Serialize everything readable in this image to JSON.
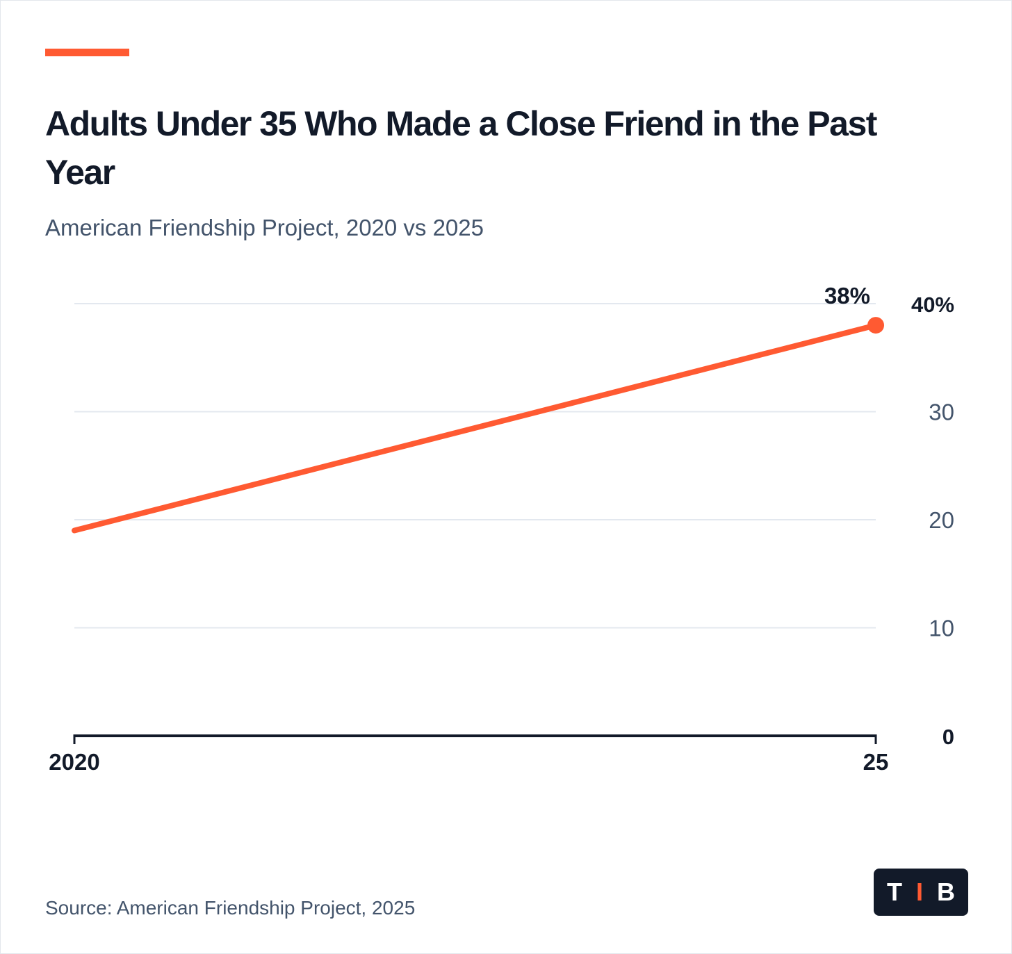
{
  "header": {
    "title": "Adults Under 35 Who Made a Close Friend in the Past Year",
    "subtitle": "American Friendship Project, 2020 vs 2025"
  },
  "footer": {
    "source": "Source: American Friendship Project, 2025"
  },
  "logo": {
    "letters": [
      "T",
      "I",
      "B"
    ]
  },
  "colors": {
    "accent": "#ff5a32",
    "text_dark": "#121a29",
    "text_muted": "#43546b",
    "grid": "#e3e8ef"
  },
  "chart_data": {
    "type": "line",
    "x_tick_labels": [
      "2020",
      "25"
    ],
    "y_tick_labels": [
      "0",
      "10",
      "20",
      "30",
      "40%"
    ],
    "y_ticks": [
      0,
      10,
      20,
      30,
      40
    ],
    "ylim": [
      0,
      40
    ],
    "y_axis_side": "right",
    "grid": true,
    "series": [
      {
        "x": [
          2020,
          2025
        ],
        "values": [
          19,
          38
        ]
      }
    ],
    "annotations": [
      {
        "x": 2025,
        "y": 38,
        "text": "38%"
      }
    ]
  }
}
